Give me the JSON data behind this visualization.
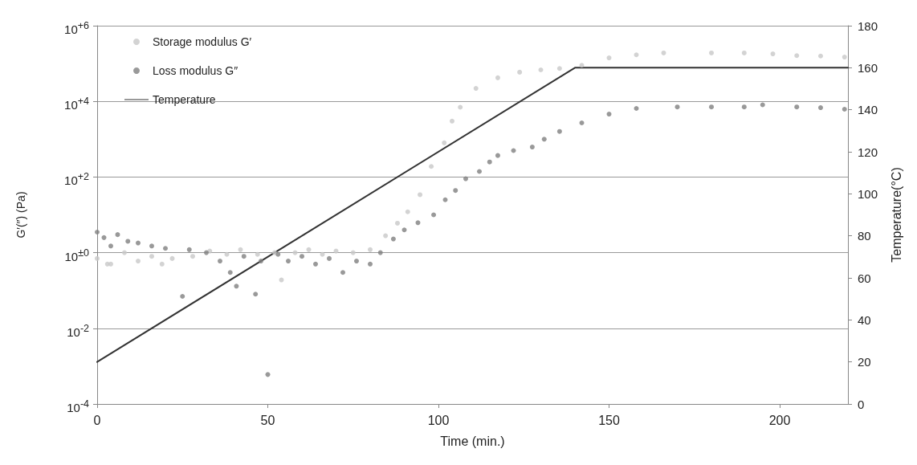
{
  "chart_data": {
    "type": "scatter",
    "xlabel": "Time (min.)",
    "ylabel": "G′(″) (Pa)",
    "y2label": "Temperature(°C)",
    "xlim": [
      0,
      220
    ],
    "xticks": [
      0,
      50,
      100,
      150,
      200
    ],
    "ylim": [
      0.0001,
      1000000
    ],
    "yticks": [
      {
        "value": 0.0001,
        "label": "10$^{-4}$"
      },
      {
        "value": 0.01,
        "label": "10$^{-2}$"
      },
      {
        "value": 1,
        "label": "10$^{±0}$"
      },
      {
        "value": 100,
        "label": "10$^{+2}$"
      },
      {
        "value": 10000,
        "label": "10$^{+4}$"
      },
      {
        "value": 1000000,
        "label": "10$^{+6}$"
      }
    ],
    "y2lim": [
      0,
      180
    ],
    "y2ticks": [
      0,
      20,
      40,
      60,
      80,
      100,
      120,
      140,
      160,
      180
    ],
    "log": "y",
    "grid": "y",
    "legend": "top left",
    "marker": "circle",
    "series": [
      {
        "name": "Storage modulus G′",
        "color": "#c8c8c8",
        "x": [
          0,
          3,
          4,
          8,
          12,
          16,
          19,
          22,
          28,
          33,
          38,
          42,
          47,
          52,
          54,
          58,
          62,
          66,
          70,
          75,
          80,
          84.5,
          88,
          91,
          94.6,
          97.9,
          101.7,
          104,
          106.4,
          111,
          117.4,
          123.8,
          130,
          135.5,
          142,
          150,
          158,
          166,
          180,
          189.6,
          198,
          205,
          212,
          219
        ],
        "values": [
          0.7,
          0.5,
          0.5,
          1.0,
          0.6,
          0.8,
          0.5,
          0.7,
          0.8,
          1.1,
          0.9,
          1.2,
          0.9,
          1.0,
          0.19,
          1.0,
          1.2,
          0.9,
          1.1,
          1.0,
          1.2,
          2.8,
          6,
          12,
          34,
          190,
          800,
          3000,
          7000,
          22000,
          42000,
          59000,
          68000,
          74000,
          90000,
          141000,
          170000,
          190000,
          190000,
          190000,
          180000,
          162000,
          158000,
          148000
        ]
      },
      {
        "name": "Loss modulus G″",
        "color": "#808080",
        "x": [
          0,
          2,
          4,
          6,
          9,
          12,
          16,
          20,
          25,
          27,
          32,
          36,
          39,
          40.8,
          43,
          46.4,
          48,
          50,
          53,
          56,
          60,
          64,
          68,
          72,
          76,
          80,
          83,
          86.8,
          90,
          94,
          98.6,
          102,
          105,
          108,
          112,
          115,
          117.4,
          122,
          127.5,
          131,
          135.5,
          142,
          150,
          158,
          170,
          180,
          189.6,
          195,
          205,
          212,
          219
        ],
        "values": [
          3.5,
          2.5,
          1.5,
          3,
          2,
          1.8,
          1.5,
          1.3,
          0.07,
          1.2,
          1.0,
          0.6,
          0.3,
          0.13,
          0.8,
          0.08,
          0.6,
          0.0006,
          0.9,
          0.6,
          0.8,
          0.5,
          0.7,
          0.3,
          0.6,
          0.5,
          1.0,
          2.3,
          4,
          6.2,
          10,
          25,
          44,
          90,
          140,
          250,
          370,
          500,
          620,
          1000,
          1600,
          2700,
          4600,
          6500,
          7100,
          7100,
          7100,
          8100,
          7100,
          6800,
          6200
        ]
      },
      {
        "name": "Temperature",
        "type": "line",
        "axis": "y2",
        "color": "#333333",
        "marker": "none",
        "line_style": "solid",
        "x": [
          0,
          140,
          220
        ],
        "values": [
          20,
          160,
          160
        ]
      }
    ]
  }
}
